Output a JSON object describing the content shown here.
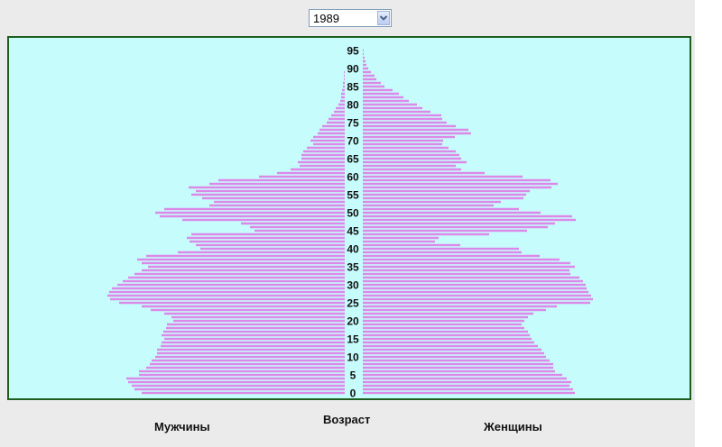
{
  "year_select": {
    "value": "1989"
  },
  "labels": {
    "male": "Мужчины",
    "center": "Возраст",
    "female": "Женщины"
  },
  "colors": {
    "bar": "#dd88e8",
    "background": "#c6fcfc",
    "border": "#1f5e1f"
  },
  "chart_data": {
    "type": "bar",
    "orientation": "horizontal",
    "ages": [
      0,
      1,
      2,
      3,
      4,
      5,
      6,
      7,
      8,
      9,
      10,
      11,
      12,
      13,
      14,
      15,
      16,
      17,
      18,
      19,
      20,
      21,
      22,
      23,
      24,
      25,
      26,
      27,
      28,
      29,
      30,
      31,
      32,
      33,
      34,
      35,
      36,
      37,
      38,
      39,
      40,
      41,
      42,
      43,
      44,
      45,
      46,
      47,
      48,
      49,
      50,
      51,
      52,
      53,
      54,
      55,
      56,
      57,
      58,
      59,
      60,
      61,
      62,
      63,
      64,
      65,
      66,
      67,
      68,
      69,
      70,
      71,
      72,
      73,
      74,
      75,
      76,
      77,
      78,
      79,
      80,
      81,
      82,
      83,
      84,
      85,
      86,
      87,
      88,
      89,
      90,
      91,
      92,
      93,
      94,
      95
    ],
    "age_ticks": [
      0,
      5,
      10,
      15,
      20,
      25,
      30,
      35,
      40,
      45,
      50,
      55,
      60,
      65,
      70,
      75,
      80,
      85,
      90,
      95
    ],
    "series": [
      {
        "name": "Мужчины",
        "values": [
          225,
          233,
          236,
          240,
          242,
          228,
          228,
          220,
          216,
          214,
          210,
          208,
          208,
          204,
          203,
          200,
          203,
          201,
          198,
          197,
          190,
          192,
          200,
          215,
          225,
          250,
          260,
          263,
          261,
          258,
          252,
          246,
          240,
          233,
          225,
          218,
          225,
          230,
          220,
          185,
          160,
          165,
          172,
          175,
          170,
          100,
          105,
          115,
          180,
          205,
          210,
          200,
          150,
          145,
          158,
          170,
          165,
          173,
          150,
          140,
          95,
          75,
          60,
          50,
          52,
          48,
          48,
          46,
          42,
          35,
          38,
          35,
          30,
          28,
          25,
          20,
          18,
          15,
          12,
          10,
          7,
          5,
          4,
          4,
          3,
          2,
          2,
          1,
          1,
          1,
          0,
          0,
          0,
          0,
          0,
          0
        ]
      },
      {
        "name": "Женщины",
        "values": [
          235,
          233,
          229,
          231,
          226,
          221,
          213,
          211,
          211,
          207,
          203,
          201,
          198,
          194,
          190,
          187,
          185,
          183,
          179,
          176,
          179,
          183,
          189,
          203,
          215,
          252,
          255,
          253,
          250,
          248,
          247,
          244,
          240,
          230,
          229,
          235,
          230,
          218,
          196,
          176,
          173,
          108,
          80,
          84,
          140,
          182,
          205,
          213,
          236,
          232,
          197,
          173,
          145,
          153,
          178,
          181,
          185,
          209,
          216,
          208,
          177,
          135,
          109,
          103,
          115,
          109,
          107,
          103,
          95,
          88,
          89,
          102,
          120,
          117,
          103,
          93,
          88,
          87,
          75,
          66,
          60,
          51,
          45,
          40,
          33,
          24,
          20,
          15,
          13,
          9,
          6,
          4,
          3,
          2,
          1,
          1
        ]
      }
    ]
  }
}
